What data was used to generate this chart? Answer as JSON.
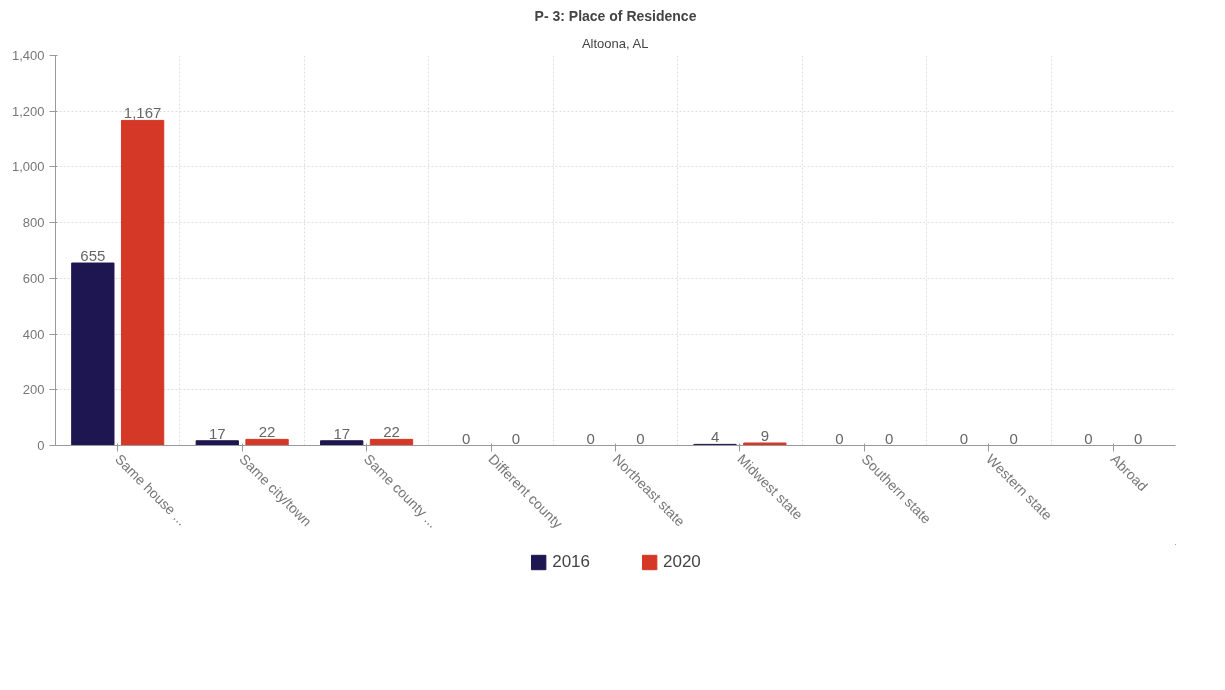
{
  "chart_data": {
    "type": "bar",
    "title": "P- 3: Place of Residence",
    "subtitle": "Altoona, AL",
    "categories": [
      "Same house ...",
      "Same city/town",
      "Same county ...",
      "Different county",
      "Northeast state",
      "Midwest state",
      "Southern state",
      "Western state",
      "Abroad"
    ],
    "series": [
      {
        "name": "2016",
        "color": "#1e1650",
        "values": [
          655,
          17,
          17,
          0,
          0,
          4,
          0,
          0,
          0
        ],
        "value_labels": [
          "655",
          "17",
          "17",
          "0",
          "0",
          "4",
          "0",
          "0",
          "0"
        ]
      },
      {
        "name": "2020",
        "color": "#d63827",
        "values": [
          1167,
          22,
          22,
          0,
          0,
          9,
          0,
          0,
          0
        ],
        "value_labels": [
          "1,167",
          "22",
          "22",
          "0",
          "0",
          "9",
          "0",
          "0",
          "0"
        ]
      }
    ],
    "ylim": [
      0,
      1400
    ],
    "yticks": [
      0,
      200,
      400,
      600,
      800,
      {
        "value": 1000,
        "label": "1,000"
      },
      {
        "value": 1200,
        "label": "1,200"
      },
      {
        "value": 1400,
        "label": "1,400"
      }
    ],
    "grid": true,
    "legend": "bottom"
  }
}
